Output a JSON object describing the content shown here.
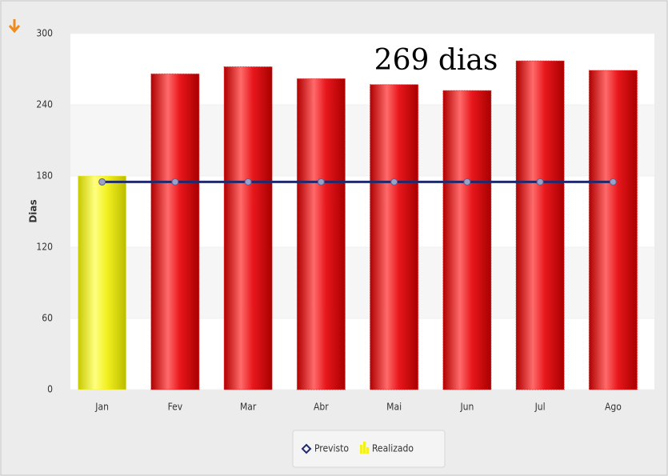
{
  "chart_data": {
    "type": "bar",
    "annotation": "269 dias",
    "y_label": "Dias",
    "categories": [
      "Jan",
      "Fev",
      "Mar",
      "Abr",
      "Mai",
      "Jun",
      "Jul",
      "Ago"
    ],
    "series": [
      {
        "name": "Previsto",
        "type": "line",
        "color": "#1f2a6e",
        "values": [
          175,
          175,
          175,
          175,
          175,
          175,
          175,
          175
        ]
      },
      {
        "name": "Realizado",
        "type": "bar",
        "color": "#f2f020",
        "colors": [
          "#f2f020",
          "#e8171c",
          "#e8171c",
          "#e8171c",
          "#e8171c",
          "#e8171c",
          "#e8171c",
          "#e8171c"
        ],
        "values": [
          180,
          266,
          272,
          262,
          257,
          252,
          277,
          269
        ]
      }
    ],
    "ylim": [
      0,
      300
    ],
    "yticks": [
      0,
      60,
      120,
      180,
      240,
      300
    ],
    "grid": true
  }
}
